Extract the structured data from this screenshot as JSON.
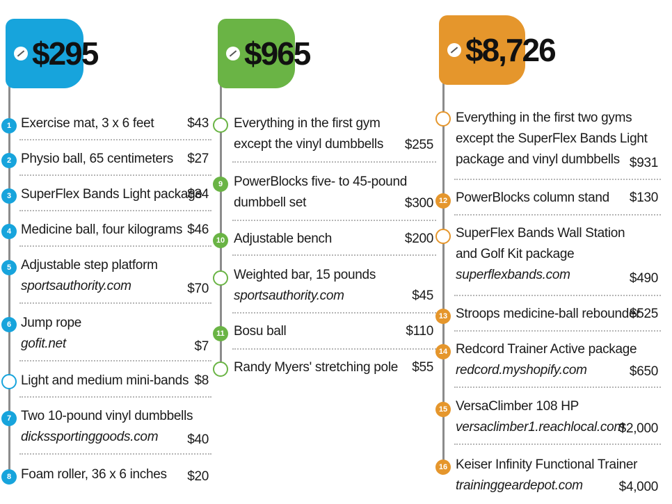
{
  "colors": {
    "blue": "#17a4dc",
    "green": "#6ab445",
    "orange": "#e5962c",
    "line": "#8c8c8c"
  },
  "tags": [
    "$295",
    "$965",
    "$8,726"
  ],
  "columns": [
    {
      "items": [
        {
          "num": "1",
          "lines": [
            "Exercise mat, 3 x 6 feet"
          ],
          "price": "$43"
        },
        {
          "num": "2",
          "lines": [
            "Physio ball, 65 centimeters"
          ],
          "price": "$27"
        },
        {
          "num": "3",
          "lines": [
            "SuperFlex Bands Light package"
          ],
          "price": "$34"
        },
        {
          "num": "4",
          "lines": [
            "Medicine ball, four kilograms"
          ],
          "price": "$46"
        },
        {
          "num": "5",
          "lines": [
            "Adjustable step platform"
          ],
          "url": "sportsauthority.com",
          "price": "$70"
        },
        {
          "num": "6",
          "lines": [
            "Jump rope"
          ],
          "url": "gofit.net",
          "price": "$7"
        },
        {
          "num": "",
          "lines": [
            "Light and medium mini-bands"
          ],
          "price": "$8"
        },
        {
          "num": "7",
          "lines": [
            "Two 10-pound vinyl dumbbells"
          ],
          "url": "dickssportinggoods.com",
          "price": "$40"
        },
        {
          "num": "8",
          "lines": [
            "Foam roller, 36 x 6 inches"
          ],
          "price": "$20"
        }
      ]
    },
    {
      "items": [
        {
          "num": "",
          "lines": [
            "Everything in the first gym",
            "except the vinyl dumbbells"
          ],
          "price": "$255"
        },
        {
          "num": "9",
          "lines": [
            "PowerBlocks five- to 45-pound",
            "dumbbell set"
          ],
          "price": "$300"
        },
        {
          "num": "10",
          "lines": [
            "Adjustable bench"
          ],
          "price": "$200"
        },
        {
          "num": "",
          "lines": [
            "Weighted bar, 15 pounds"
          ],
          "url": "sportsauthority.com",
          "price": "$45"
        },
        {
          "num": "11",
          "lines": [
            "Bosu ball"
          ],
          "price": "$110"
        },
        {
          "num": "",
          "lines": [
            "Randy Myers' stretching pole"
          ],
          "price": "$55"
        }
      ]
    },
    {
      "items": [
        {
          "num": "",
          "lines": [
            "Everything in the first two gyms",
            "except the SuperFlex Bands Light",
            "package and vinyl dumbbells"
          ],
          "price": "$931"
        },
        {
          "num": "12",
          "lines": [
            "PowerBlocks column stand"
          ],
          "price": "$130"
        },
        {
          "num": "",
          "lines": [
            "SuperFlex Bands Wall Station",
            "and Golf Kit package"
          ],
          "url": "superflexbands.com",
          "price": "$490"
        },
        {
          "num": "13",
          "lines": [
            "Stroops medicine-ball rebounder"
          ],
          "price": "$525"
        },
        {
          "num": "14",
          "lines": [
            "Redcord Trainer Active package"
          ],
          "url": "redcord.myshopify.com",
          "price": "$650"
        },
        {
          "num": "15",
          "lines": [
            "VersaClimber 108 HP"
          ],
          "url": "versaclimber1.reachlocal.com",
          "price": "$2,000"
        },
        {
          "num": "16",
          "lines": [
            "Keiser Infinity Functional Trainer"
          ],
          "url": "traininggeardepot.com",
          "price": "$4,000"
        }
      ]
    }
  ]
}
